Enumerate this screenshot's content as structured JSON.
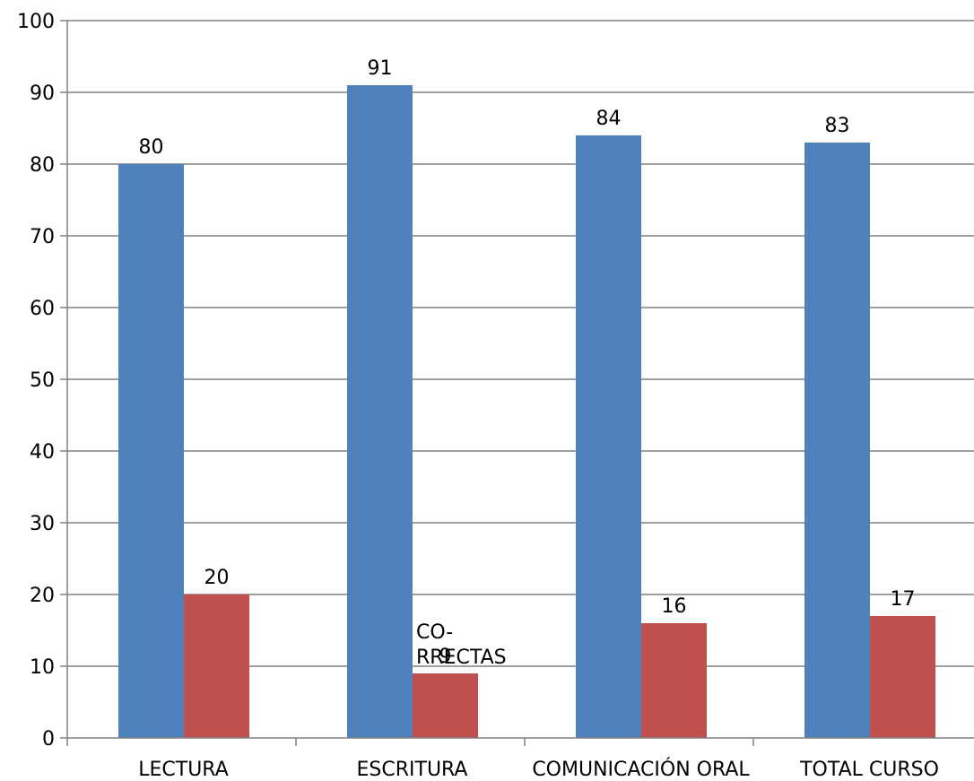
{
  "chart_data": {
    "type": "bar",
    "categories": [
      "LECTURA",
      "ESCRITURA",
      "COMUNICACIÓN ORAL",
      "TOTAL CURSO"
    ],
    "series": [
      {
        "values": [
          80,
          91,
          84,
          83
        ],
        "color": "#4F81BD"
      },
      {
        "values": [
          20,
          9,
          16,
          17
        ],
        "color": "#C0504D"
      }
    ],
    "ylim": [
      0,
      100
    ],
    "yticks": [
      0,
      10,
      20,
      30,
      40,
      50,
      60,
      70,
      80,
      90,
      100
    ],
    "grid": true,
    "legend": "none",
    "annotations": [
      {
        "text": "CO-",
        "category": "ESCRITURA"
      },
      {
        "text": "RRECTAS",
        "category": "ESCRITURA"
      }
    ]
  },
  "colors": {
    "axis": "#808080",
    "grid": "#808080",
    "text": "#000000"
  }
}
